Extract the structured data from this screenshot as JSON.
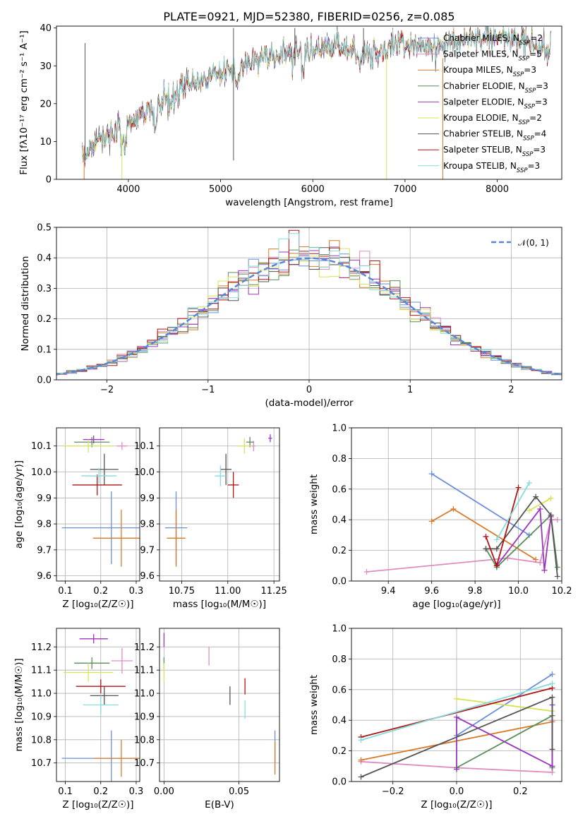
{
  "figure_title": "PLATE=0921, MJD=52380, FIBERID=0256, z=0.085",
  "series_styles": [
    {
      "key": "ch_miles",
      "color": "#6a8fdc"
    },
    {
      "key": "sa_miles",
      "color": "#e08cc0"
    },
    {
      "key": "kr_miles",
      "color": "#d97a2a"
    },
    {
      "key": "ch_elodie",
      "color": "#5b8e5b"
    },
    {
      "key": "sa_elodie",
      "color": "#9b35bd"
    },
    {
      "key": "kr_elodie",
      "color": "#d8e35a"
    },
    {
      "key": "ch_stelib",
      "color": "#555555"
    },
    {
      "key": "sa_stelib",
      "color": "#b01515"
    },
    {
      "key": "kr_stelib",
      "color": "#86dcdc"
    }
  ],
  "chart_data": [
    {
      "id": "spectrum",
      "type": "line",
      "title": "PLATE=0921, MJD=52380, FIBERID=0256, z=0.085",
      "xlabel": "wavelength [Angstrom, rest frame]",
      "ylabel": "Flux [fλ10⁻¹⁷ erg cm⁻² s⁻¹ A⁻¹]",
      "xlim": [
        3220,
        8700
      ],
      "ylim": [
        0,
        40.5
      ],
      "xticks": [
        4000,
        5000,
        6000,
        7000,
        8000
      ],
      "yticks": [
        0,
        10,
        20,
        30,
        40
      ],
      "grid": false,
      "legend_position": "upper-right",
      "legend": [
        {
          "name": "Chabrier MILES, N",
          "sub": "SSP",
          "tail": "=2",
          "color": "#6a8fdc"
        },
        {
          "name": "Salpeter MILES, N",
          "sub": "SSP",
          "tail": "=5",
          "color": "#e08cc0"
        },
        {
          "name": "Kroupa MILES, N",
          "sub": "SSP",
          "tail": "=3",
          "color": "#d97a2a"
        },
        {
          "name": "Chabrier ELODIE, N",
          "sub": "SSP",
          "tail": "=3",
          "color": "#5b8e5b"
        },
        {
          "name": "Salpeter ELODIE, N",
          "sub": "SSP",
          "tail": "=3",
          "color": "#9b35bd"
        },
        {
          "name": "Kroupa ELODIE, N",
          "sub": "SSP",
          "tail": "=2",
          "color": "#d8e35a"
        },
        {
          "name": "Chabrier STELIB, N",
          "sub": "SSP",
          "tail": "=4",
          "color": "#555555"
        },
        {
          "name": "Salpeter STELIB, N",
          "sub": "SSP",
          "tail": "=3",
          "color": "#b01515"
        },
        {
          "name": "Kroupa STELIB, N",
          "sub": "SSP",
          "tail": "=3",
          "color": "#86dcdc"
        }
      ],
      "continuum_x": [
        3500,
        3700,
        3900,
        4000,
        4100,
        4300,
        4500,
        4700,
        5000,
        5300,
        5600,
        6000,
        6300,
        6600,
        7000,
        7400,
        7800,
        8100,
        8400,
        8500
      ],
      "continuum_y": [
        6,
        11,
        13,
        15,
        17,
        19,
        22,
        26,
        28,
        31,
        33,
        34,
        35,
        33,
        36,
        35,
        38,
        37,
        36,
        34
      ],
      "spikes": [
        {
          "x": 3530,
          "y_top": 36,
          "y_bottom": 5
        },
        {
          "x": 5140,
          "y_top": 40,
          "y_bottom": 5
        },
        {
          "x": 5805,
          "y_top": 40,
          "y_bottom": 30
        },
        {
          "x": 6550,
          "y_top": 40,
          "y_bottom": 33
        },
        {
          "x": 3520,
          "y_top": 9,
          "y_bottom": 0
        },
        {
          "x": 3930,
          "y_top": 12,
          "y_bottom": 0
        },
        {
          "x": 6800,
          "y_top": 33,
          "y_bottom": 0
        },
        {
          "x": 7410,
          "y_top": 32,
          "y_bottom": 0
        }
      ]
    },
    {
      "id": "residuals",
      "type": "bar",
      "xlabel": "(data-model)/error",
      "ylabel": "Normed distribution",
      "xlim": [
        -2.5,
        2.5
      ],
      "ylim": [
        0,
        0.5
      ],
      "xticks": [
        -2,
        -1,
        0,
        1,
        2
      ],
      "yticks": [
        0.0,
        0.1,
        0.2,
        0.3,
        0.4,
        0.5
      ],
      "grid": true,
      "legend_position": "upper-right",
      "legend": [
        {
          "name": "𝒩(0, 1)",
          "color": "#5b86d8",
          "dashed": true
        }
      ],
      "normal": {
        "mean": 0,
        "sigma": 1
      }
    },
    {
      "id": "age_vs_Z",
      "type": "scatter",
      "xlabel": "Z [log₁₀(Z/Z☉)]",
      "ylabel": "age  [log₁₀(age/yr)]",
      "xlim": [
        0.075,
        0.31
      ],
      "ylim": [
        9.58,
        10.17
      ],
      "xticks": [
        0.1,
        0.2,
        0.3
      ],
      "yticks": [
        9.6,
        9.7,
        9.8,
        9.9,
        10.0,
        10.1
      ],
      "grid": true,
      "points": [
        {
          "x": 0.23,
          "y": 9.785,
          "xerr": 0.14,
          "yerr": 0.14,
          "color": "#6a8fdc"
        },
        {
          "x": 0.258,
          "y": 9.745,
          "xerr": 0.08,
          "yerr": 0.11,
          "color": "#d97a2a"
        },
        {
          "x": 0.26,
          "y": 10.1,
          "xerr": 0.015,
          "yerr": 0.015,
          "color": "#e08cc0"
        },
        {
          "x": 0.175,
          "y": 10.115,
          "xerr": 0.05,
          "yerr": 0.02,
          "color": "#5b8e5b"
        },
        {
          "x": 0.18,
          "y": 10.125,
          "xerr": 0.03,
          "yerr": 0.015,
          "color": "#9b35bd"
        },
        {
          "x": 0.165,
          "y": 10.1,
          "xerr": 0.07,
          "yerr": 0.025,
          "color": "#d8e35a"
        },
        {
          "x": 0.21,
          "y": 10.01,
          "xerr": 0.04,
          "yerr": 0.06,
          "color": "#555555"
        },
        {
          "x": 0.19,
          "y": 9.95,
          "xerr": 0.07,
          "yerr": 0.04,
          "color": "#b01515"
        },
        {
          "x": 0.195,
          "y": 9.985,
          "xerr": 0.05,
          "yerr": 0.03,
          "color": "#86dcdc"
        }
      ]
    },
    {
      "id": "age_vs_mass",
      "type": "scatter",
      "xlabel": "mass [log₁₀(M/M☉)]",
      "ylabel": "",
      "xlim": [
        10.63,
        11.28
      ],
      "ylim": [
        9.58,
        10.17
      ],
      "xticks": [
        10.75,
        11.0,
        11.25
      ],
      "yticks": [
        9.6,
        9.7,
        9.8,
        9.9,
        10.0,
        10.1
      ],
      "grid": true,
      "points": [
        {
          "x": 10.72,
          "y": 9.785,
          "xerr": 0.06,
          "yerr": 0.14,
          "color": "#6a8fdc"
        },
        {
          "x": 10.72,
          "y": 9.745,
          "xerr": 0.05,
          "yerr": 0.11,
          "color": "#d97a2a"
        },
        {
          "x": 11.14,
          "y": 10.1,
          "xerr": 0.01,
          "yerr": 0.02,
          "color": "#e08cc0"
        },
        {
          "x": 11.12,
          "y": 10.115,
          "xerr": 0.02,
          "yerr": 0.02,
          "color": "#5b8e5b"
        },
        {
          "x": 11.23,
          "y": 10.13,
          "xerr": 0.01,
          "yerr": 0.015,
          "color": "#9b35bd"
        },
        {
          "x": 11.09,
          "y": 10.1,
          "xerr": 0.04,
          "yerr": 0.03,
          "color": "#d8e35a"
        },
        {
          "x": 10.99,
          "y": 10.01,
          "xerr": 0.03,
          "yerr": 0.06,
          "color": "#555555"
        },
        {
          "x": 11.03,
          "y": 9.95,
          "xerr": 0.03,
          "yerr": 0.05,
          "color": "#b01515"
        },
        {
          "x": 10.96,
          "y": 9.985,
          "xerr": 0.03,
          "yerr": 0.04,
          "color": "#86dcdc"
        }
      ]
    },
    {
      "id": "weight_vs_age",
      "type": "line",
      "xlabel": "age  [log₁₀(age/yr)]",
      "ylabel": "mass weight",
      "xlim": [
        9.23,
        10.2
      ],
      "ylim": [
        0,
        1.0
      ],
      "xticks": [
        9.4,
        9.6,
        9.8,
        10.0,
        10.2
      ],
      "yticks": [
        0.0,
        0.2,
        0.4,
        0.6,
        0.8,
        1.0
      ],
      "grid": true,
      "series": [
        {
          "color": "#6a8fdc",
          "x": [
            9.6,
            10.05
          ],
          "y": [
            0.7,
            0.3
          ]
        },
        {
          "color": "#e08cc0",
          "x": [
            9.3,
            9.95,
            10.1,
            10.15,
            10.18
          ],
          "y": [
            0.06,
            0.15,
            0.12,
            0.4,
            0.4
          ]
        },
        {
          "color": "#d97a2a",
          "x": [
            9.6,
            9.7,
            10.08
          ],
          "y": [
            0.39,
            0.47,
            0.14
          ]
        },
        {
          "color": "#5b8e5b",
          "x": [
            9.85,
            9.9,
            10.15,
            10.18
          ],
          "y": [
            0.21,
            0.09,
            0.43,
            0.09
          ]
        },
        {
          "color": "#9b35bd",
          "x": [
            9.9,
            10.1,
            10.12,
            10.15
          ],
          "y": [
            0.1,
            0.47,
            0.07,
            0.42
          ]
        },
        {
          "color": "#d8e35a",
          "x": [
            10.05,
            10.15
          ],
          "y": [
            0.46,
            0.54
          ]
        },
        {
          "color": "#555555",
          "x": [
            9.85,
            9.9,
            10.08,
            10.15,
            10.18
          ],
          "y": [
            0.21,
            0.21,
            0.55,
            0.43,
            0.03
          ]
        },
        {
          "color": "#b01515",
          "x": [
            9.85,
            9.9,
            10.0
          ],
          "y": [
            0.29,
            0.1,
            0.61
          ]
        },
        {
          "color": "#86dcdc",
          "x": [
            9.9,
            10.05
          ],
          "y": [
            0.27,
            0.64
          ]
        }
      ]
    },
    {
      "id": "mass_vs_Z",
      "type": "scatter",
      "xlabel": "Z [log₁₀(Z/Z☉)]",
      "ylabel": "mass [log₁₀(M/M☉)]",
      "xlim": [
        0.075,
        0.31
      ],
      "ylim": [
        10.62,
        11.28
      ],
      "xticks": [
        0.1,
        0.2,
        0.3
      ],
      "yticks": [
        10.7,
        10.8,
        10.9,
        11.0,
        11.1,
        11.2
      ],
      "grid": true,
      "points": [
        {
          "x": 0.23,
          "y": 10.72,
          "xerr": 0.14,
          "yerr": 0.12,
          "color": "#6a8fdc"
        },
        {
          "x": 0.258,
          "y": 10.72,
          "xerr": 0.08,
          "yerr": 0.08,
          "color": "#d97a2a"
        },
        {
          "x": 0.26,
          "y": 11.14,
          "xerr": 0.03,
          "yerr": 0.055,
          "color": "#e08cc0"
        },
        {
          "x": 0.175,
          "y": 11.13,
          "xerr": 0.05,
          "yerr": 0.025,
          "color": "#5b8e5b"
        },
        {
          "x": 0.18,
          "y": 11.235,
          "xerr": 0.04,
          "yerr": 0.02,
          "color": "#9b35bd"
        },
        {
          "x": 0.165,
          "y": 11.09,
          "xerr": 0.07,
          "yerr": 0.04,
          "color": "#d8e35a"
        },
        {
          "x": 0.21,
          "y": 10.99,
          "xerr": 0.04,
          "yerr": 0.04,
          "color": "#555555"
        },
        {
          "x": 0.2,
          "y": 11.03,
          "xerr": 0.07,
          "yerr": 0.03,
          "color": "#b01515"
        },
        {
          "x": 0.2,
          "y": 10.95,
          "xerr": 0.05,
          "yerr": 0.04,
          "color": "#86dcdc"
        }
      ]
    },
    {
      "id": "mass_vs_ebv",
      "type": "scatter",
      "xlabel": "E(B-V)",
      "ylabel": "",
      "xlim": [
        -0.003,
        0.077
      ],
      "ylim": [
        10.62,
        11.28
      ],
      "xticks": [
        0.0,
        0.05
      ],
      "yticks": [
        10.7,
        10.8,
        10.9,
        11.0,
        11.1,
        11.2
      ],
      "grid": true,
      "points": [
        {
          "x": 0.074,
          "y": 10.77,
          "xerr": 0,
          "yerr": 0.07,
          "color": "#6a8fdc"
        },
        {
          "x": 0.074,
          "y": 10.72,
          "xerr": 0,
          "yerr": 0.07,
          "color": "#d97a2a"
        },
        {
          "x": 0.03,
          "y": 11.16,
          "xerr": 0,
          "yerr": 0.04,
          "color": "#e08cc0"
        },
        {
          "x": 0.0,
          "y": 11.13,
          "xerr": 0,
          "yerr": 0.025,
          "color": "#5b8e5b"
        },
        {
          "x": 0.0,
          "y": 11.23,
          "xerr": 0,
          "yerr": 0.03,
          "color": "#9b35bd"
        },
        {
          "x": 0.0,
          "y": 11.09,
          "xerr": 0,
          "yerr": 0.04,
          "color": "#d8e35a"
        },
        {
          "x": 0.044,
          "y": 10.99,
          "xerr": 0,
          "yerr": 0.04,
          "color": "#555555"
        },
        {
          "x": 0.054,
          "y": 11.03,
          "xerr": 0,
          "yerr": 0.035,
          "color": "#b01515"
        },
        {
          "x": 0.054,
          "y": 10.93,
          "xerr": 0,
          "yerr": 0.04,
          "color": "#86dcdc"
        }
      ]
    },
    {
      "id": "weight_vs_Z",
      "type": "line",
      "xlabel": "Z [log₁₀(Z/Z☉)]",
      "ylabel": "mass weight",
      "xlim": [
        -0.33,
        0.33
      ],
      "ylim": [
        0,
        1.0
      ],
      "xticks": [
        -0.2,
        0.0,
        0.2
      ],
      "yticks": [
        0.0,
        0.2,
        0.4,
        0.6,
        0.8,
        1.0
      ],
      "grid": true,
      "series": [
        {
          "color": "#6a8fdc",
          "x": [
            0.0,
            0.3
          ],
          "y": [
            0.3,
            0.7
          ]
        },
        {
          "color": "#e08cc0",
          "x": [
            -0.3,
            0.0,
            0.3,
            0.3
          ],
          "y": [
            0.13,
            0.09,
            0.06,
            0.4
          ]
        },
        {
          "color": "#d97a2a",
          "x": [
            -0.3,
            0.3
          ],
          "y": [
            0.14,
            0.39
          ]
        },
        {
          "color": "#5b8e5b",
          "x": [
            0.0,
            0.3,
            0.3
          ],
          "y": [
            0.09,
            0.43,
            0.09
          ]
        },
        {
          "color": "#9b35bd",
          "x": [
            0.0,
            0.0,
            0.3,
            0.3
          ],
          "y": [
            0.08,
            0.42,
            0.1,
            0.5
          ]
        },
        {
          "color": "#d8e35a",
          "x": [
            0.0,
            0.3
          ],
          "y": [
            0.54,
            0.46
          ]
        },
        {
          "color": "#555555",
          "x": [
            -0.3,
            0.3,
            0.3
          ],
          "y": [
            0.03,
            0.55,
            0.21
          ]
        },
        {
          "color": "#b01515",
          "x": [
            -0.3,
            0.3
          ],
          "y": [
            0.29,
            0.61
          ]
        },
        {
          "color": "#86dcdc",
          "x": [
            -0.3,
            0.3
          ],
          "y": [
            0.27,
            0.64
          ]
        }
      ]
    }
  ]
}
